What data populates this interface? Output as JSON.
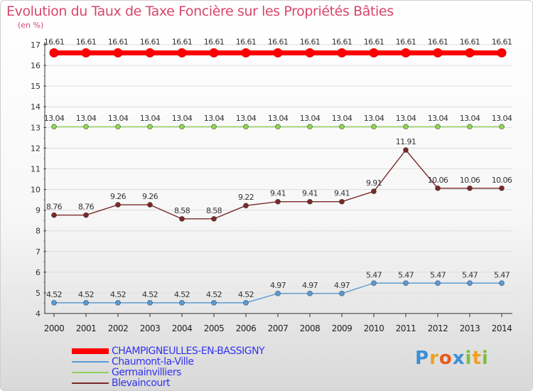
{
  "colors": {
    "title": "#d8456b",
    "legend_text": "#3333ee",
    "grid": "#dddddd"
  },
  "logo": {
    "text": "Proxiti",
    "letters": [
      {
        "ch": "P",
        "color": "#3b8fd8"
      },
      {
        "ch": "r",
        "color": "#f0a020"
      },
      {
        "ch": "o",
        "color": "#e85a1a"
      },
      {
        "ch": "x",
        "color": "#3b8fd8"
      },
      {
        "ch": "i",
        "color": "#7cc03c"
      },
      {
        "ch": "t",
        "color": "#f0a020"
      },
      {
        "ch": "i",
        "color": "#7cc03c"
      }
    ]
  },
  "chart_data": {
    "type": "line",
    "title": "Evolution du Taux de Taxe Foncière sur les Propriétés Bâties",
    "ylabel": "(en %)",
    "xlabel": "",
    "ylim": [
      4,
      17
    ],
    "yticks": [
      4,
      5,
      6,
      7,
      8,
      9,
      10,
      11,
      12,
      13,
      14,
      15,
      16,
      17
    ],
    "categories": [
      "2000",
      "2001",
      "2002",
      "2003",
      "2004",
      "2005",
      "2006",
      "2007",
      "2008",
      "2009",
      "2010",
      "2011",
      "2012",
      "2013",
      "2014"
    ],
    "series": [
      {
        "name": "CHAMPIGNEULLES-EN-BASSIGNY",
        "color": "#ff0000",
        "values": [
          16.61,
          16.61,
          16.61,
          16.61,
          16.61,
          16.61,
          16.61,
          16.61,
          16.61,
          16.61,
          16.61,
          16.61,
          16.61,
          16.61,
          16.61
        ],
        "labels": [
          "16.61",
          "16.61",
          "16.61",
          "16.61",
          "16.61",
          "16.61",
          "16.61",
          "16.61",
          "16.61",
          "16.61",
          "16.61",
          "16.61",
          "16.61",
          "16.61",
          "16.61"
        ]
      },
      {
        "name": "Chaumont-la-Ville",
        "color": "#5b9bd5",
        "values": [
          4.52,
          4.52,
          4.52,
          4.52,
          4.52,
          4.52,
          4.52,
          4.97,
          4.97,
          4.97,
          5.47,
          5.47,
          5.47,
          5.47,
          5.47
        ],
        "labels": [
          "4.52",
          "4.52",
          "4.52",
          "4.52",
          "4.52",
          "4.52",
          "4.52",
          "4.97",
          "4.97",
          "4.97",
          "5.47",
          "5.47",
          "5.47",
          "5.47",
          "5.47"
        ]
      },
      {
        "name": "Germainvilliers",
        "color": "#8ed35a",
        "values": [
          13.04,
          13.04,
          13.04,
          13.04,
          13.04,
          13.04,
          13.04,
          13.04,
          13.04,
          13.04,
          13.04,
          13.04,
          13.04,
          13.04,
          13.04
        ],
        "labels": [
          "13.04",
          "13.04",
          "13.04",
          "13.04",
          "13.04",
          "13.04",
          "13.04",
          "13.04",
          "13.04",
          "13.04",
          "13.04",
          "13.04",
          "13.04",
          "13.04",
          "13.04"
        ]
      },
      {
        "name": "Blevaincourt",
        "color": "#7a2a2a",
        "values": [
          8.76,
          8.76,
          9.26,
          9.26,
          8.58,
          8.58,
          9.22,
          9.41,
          9.41,
          9.41,
          9.91,
          11.91,
          10.06,
          10.06,
          10.06
        ],
        "labels": [
          "8.76",
          "8.76",
          "9.26",
          "9.26",
          "8.58",
          "8.58",
          "9.22",
          "9.41",
          "9.41",
          "9.41",
          "9.91",
          "11.91",
          "10.06",
          "10.06",
          "10.06"
        ]
      }
    ]
  }
}
